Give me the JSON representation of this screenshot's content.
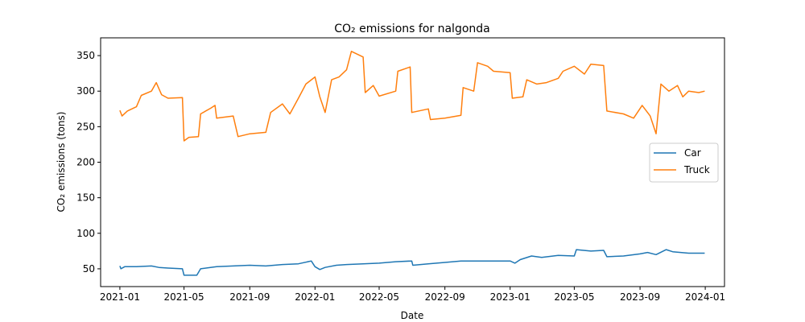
{
  "chart_data": {
    "type": "line",
    "title": "CO₂ emissions for nalgonda",
    "xlabel": "Date",
    "ylabel": "CO₂ emissions (tons)",
    "xlim": [
      "2020-11-26",
      "2024-02-06"
    ],
    "ylim": [
      25,
      375
    ],
    "x_ticks": [
      "2021-01",
      "2021-05",
      "2021-09",
      "2022-01",
      "2022-05",
      "2022-09",
      "2023-01",
      "2023-05",
      "2023-09",
      "2024-01"
    ],
    "y_ticks": [
      50,
      100,
      150,
      200,
      250,
      300,
      350
    ],
    "grid": false,
    "legend_position": "center-right",
    "series": [
      {
        "name": "Car",
        "color": "#1f77b4",
        "points": [
          [
            "2021-01-01",
            54
          ],
          [
            "2021-01-03",
            50
          ],
          [
            "2021-01-10",
            53
          ],
          [
            "2021-02-01",
            53
          ],
          [
            "2021-03-01",
            54
          ],
          [
            "2021-03-15",
            52
          ],
          [
            "2021-04-01",
            51
          ],
          [
            "2021-04-28",
            50
          ],
          [
            "2021-05-01",
            41
          ],
          [
            "2021-05-25",
            41
          ],
          [
            "2021-06-01",
            50
          ],
          [
            "2021-07-01",
            53
          ],
          [
            "2021-08-01",
            54
          ],
          [
            "2021-09-01",
            55
          ],
          [
            "2021-10-01",
            54
          ],
          [
            "2021-11-01",
            56
          ],
          [
            "2021-12-01",
            57
          ],
          [
            "2021-12-25",
            61
          ],
          [
            "2022-01-01",
            53
          ],
          [
            "2022-01-10",
            49
          ],
          [
            "2022-01-20",
            52
          ],
          [
            "2022-02-10",
            55
          ],
          [
            "2022-03-01",
            56
          ],
          [
            "2022-04-01",
            57
          ],
          [
            "2022-05-01",
            58
          ],
          [
            "2022-06-01",
            60
          ],
          [
            "2022-07-01",
            61
          ],
          [
            "2022-07-03",
            55
          ],
          [
            "2022-08-01",
            57
          ],
          [
            "2022-09-01",
            59
          ],
          [
            "2022-10-01",
            61
          ],
          [
            "2022-11-01",
            61
          ],
          [
            "2022-12-01",
            61
          ],
          [
            "2023-01-01",
            61
          ],
          [
            "2023-01-10",
            58
          ],
          [
            "2023-01-20",
            63
          ],
          [
            "2023-02-10",
            68
          ],
          [
            "2023-03-01",
            66
          ],
          [
            "2023-04-01",
            69
          ],
          [
            "2023-05-01",
            68
          ],
          [
            "2023-05-05",
            77
          ],
          [
            "2023-06-01",
            75
          ],
          [
            "2023-06-25",
            76
          ],
          [
            "2023-07-01",
            67
          ],
          [
            "2023-08-01",
            68
          ],
          [
            "2023-09-01",
            71
          ],
          [
            "2023-09-15",
            73
          ],
          [
            "2023-10-01",
            70
          ],
          [
            "2023-10-20",
            77
          ],
          [
            "2023-11-01",
            74
          ],
          [
            "2023-12-01",
            72
          ],
          [
            "2023-12-31",
            72
          ]
        ]
      },
      {
        "name": "Truck",
        "color": "#ff7f0e",
        "points": [
          [
            "2021-01-01",
            273
          ],
          [
            "2021-01-05",
            265
          ],
          [
            "2021-01-15",
            272
          ],
          [
            "2021-02-01",
            278
          ],
          [
            "2021-02-10",
            294
          ],
          [
            "2021-03-01",
            300
          ],
          [
            "2021-03-10",
            312
          ],
          [
            "2021-03-20",
            295
          ],
          [
            "2021-04-01",
            290
          ],
          [
            "2021-04-28",
            291
          ],
          [
            "2021-05-01",
            230
          ],
          [
            "2021-05-10",
            235
          ],
          [
            "2021-05-28",
            236
          ],
          [
            "2021-06-01",
            268
          ],
          [
            "2021-06-20",
            276
          ],
          [
            "2021-06-28",
            280
          ],
          [
            "2021-07-01",
            262
          ],
          [
            "2021-08-01",
            265
          ],
          [
            "2021-08-10",
            236
          ],
          [
            "2021-09-01",
            240
          ],
          [
            "2021-10-01",
            242
          ],
          [
            "2021-10-10",
            270
          ],
          [
            "2021-11-01",
            282
          ],
          [
            "2021-11-15",
            268
          ],
          [
            "2021-12-01",
            290
          ],
          [
            "2021-12-15",
            310
          ],
          [
            "2022-01-01",
            320
          ],
          [
            "2022-01-10",
            292
          ],
          [
            "2022-01-20",
            270
          ],
          [
            "2022-02-01",
            316
          ],
          [
            "2022-02-15",
            320
          ],
          [
            "2022-03-01",
            330
          ],
          [
            "2022-03-10",
            356
          ],
          [
            "2022-04-01",
            348
          ],
          [
            "2022-04-05",
            298
          ],
          [
            "2022-04-20",
            308
          ],
          [
            "2022-05-01",
            293
          ],
          [
            "2022-06-01",
            300
          ],
          [
            "2022-06-05",
            328
          ],
          [
            "2022-06-28",
            334
          ],
          [
            "2022-07-01",
            270
          ],
          [
            "2022-08-01",
            275
          ],
          [
            "2022-08-05",
            260
          ],
          [
            "2022-09-01",
            262
          ],
          [
            "2022-10-01",
            266
          ],
          [
            "2022-10-05",
            305
          ],
          [
            "2022-10-25",
            300
          ],
          [
            "2022-11-01",
            340
          ],
          [
            "2022-11-20",
            335
          ],
          [
            "2022-12-01",
            328
          ],
          [
            "2023-01-01",
            326
          ],
          [
            "2023-01-05",
            290
          ],
          [
            "2023-01-25",
            292
          ],
          [
            "2023-02-01",
            316
          ],
          [
            "2023-02-20",
            310
          ],
          [
            "2023-03-10",
            312
          ],
          [
            "2023-04-01",
            318
          ],
          [
            "2023-04-10",
            328
          ],
          [
            "2023-05-01",
            335
          ],
          [
            "2023-05-20",
            324
          ],
          [
            "2023-06-01",
            338
          ],
          [
            "2023-06-25",
            336
          ],
          [
            "2023-07-01",
            272
          ],
          [
            "2023-08-01",
            268
          ],
          [
            "2023-08-20",
            262
          ],
          [
            "2023-09-05",
            280
          ],
          [
            "2023-09-20",
            265
          ],
          [
            "2023-10-01",
            240
          ],
          [
            "2023-10-10",
            310
          ],
          [
            "2023-10-25",
            300
          ],
          [
            "2023-11-10",
            308
          ],
          [
            "2023-11-20",
            292
          ],
          [
            "2023-12-01",
            300
          ],
          [
            "2023-12-20",
            298
          ],
          [
            "2023-12-31",
            300
          ]
        ]
      }
    ]
  }
}
